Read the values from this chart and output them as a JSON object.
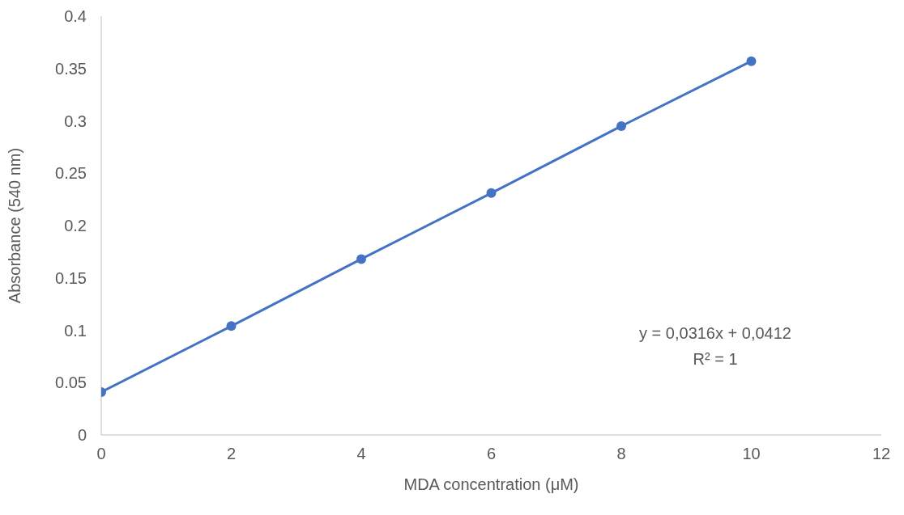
{
  "chart_data": {
    "type": "line",
    "xlabel": "MDA concentration (μM)",
    "ylabel": "Absorbance (540 nm)",
    "x": [
      0,
      2,
      4,
      6,
      8,
      10
    ],
    "series": [
      {
        "color": "#4472c4",
        "values": [
          0.041,
          0.104,
          0.168,
          0.231,
          0.295,
          0.357
        ]
      }
    ],
    "xlim": [
      0,
      12
    ],
    "xticks": [
      0,
      2,
      4,
      6,
      8,
      10,
      12
    ],
    "ylim": [
      0,
      0.4
    ],
    "yticks": [
      0,
      0.05,
      0.1,
      0.15,
      0.2,
      0.25,
      0.3,
      0.35,
      0.4
    ],
    "marker": "circle",
    "line_style": "solid",
    "grid": false,
    "legend": false,
    "annotations": [
      "y = 0,0316x + 0,0412",
      "R² = 1"
    ]
  }
}
